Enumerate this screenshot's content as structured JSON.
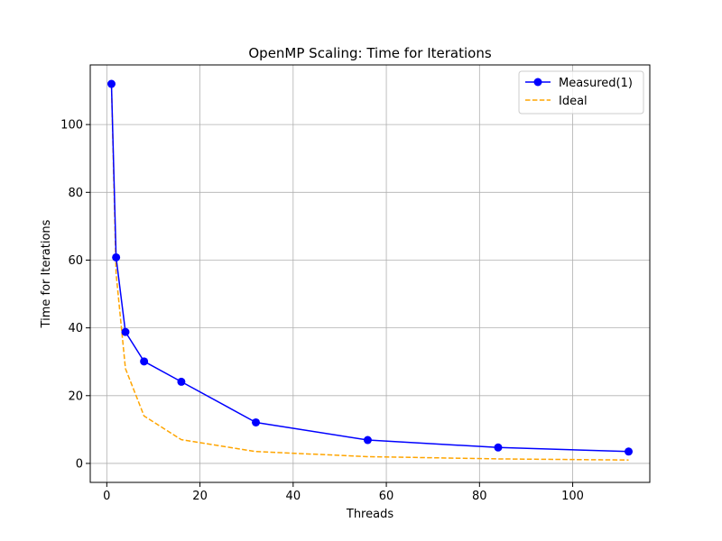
{
  "chart_data": {
    "type": "line",
    "title": "OpenMP Scaling: Time for Iterations",
    "xlabel": "Threads",
    "ylabel": "Time for Iterations",
    "xlim": [
      -3.55,
      116.55
    ],
    "ylim": [
      -5.6,
      117.6
    ],
    "xticks": [
      0,
      20,
      40,
      60,
      80,
      100
    ],
    "yticks": [
      0,
      20,
      40,
      60,
      80,
      100
    ],
    "grid": true,
    "legend_position": "top-right",
    "series": [
      {
        "name": "Measured(1)",
        "color": "#0000ff",
        "style": "solid",
        "marker": "circle",
        "x": [
          1,
          2,
          4,
          8,
          16,
          32,
          56,
          84,
          112
        ],
        "y": [
          112,
          60.8,
          38.8,
          30.1,
          24.1,
          12.1,
          6.9,
          4.7,
          3.5
        ]
      },
      {
        "name": "Ideal",
        "color": "#ffa500",
        "style": "dashed",
        "marker": "none",
        "x": [
          1,
          2,
          4,
          8,
          16,
          32,
          56,
          84,
          112
        ],
        "y": [
          112,
          56,
          28,
          14,
          7,
          3.5,
          2,
          1.333,
          1
        ]
      }
    ]
  }
}
